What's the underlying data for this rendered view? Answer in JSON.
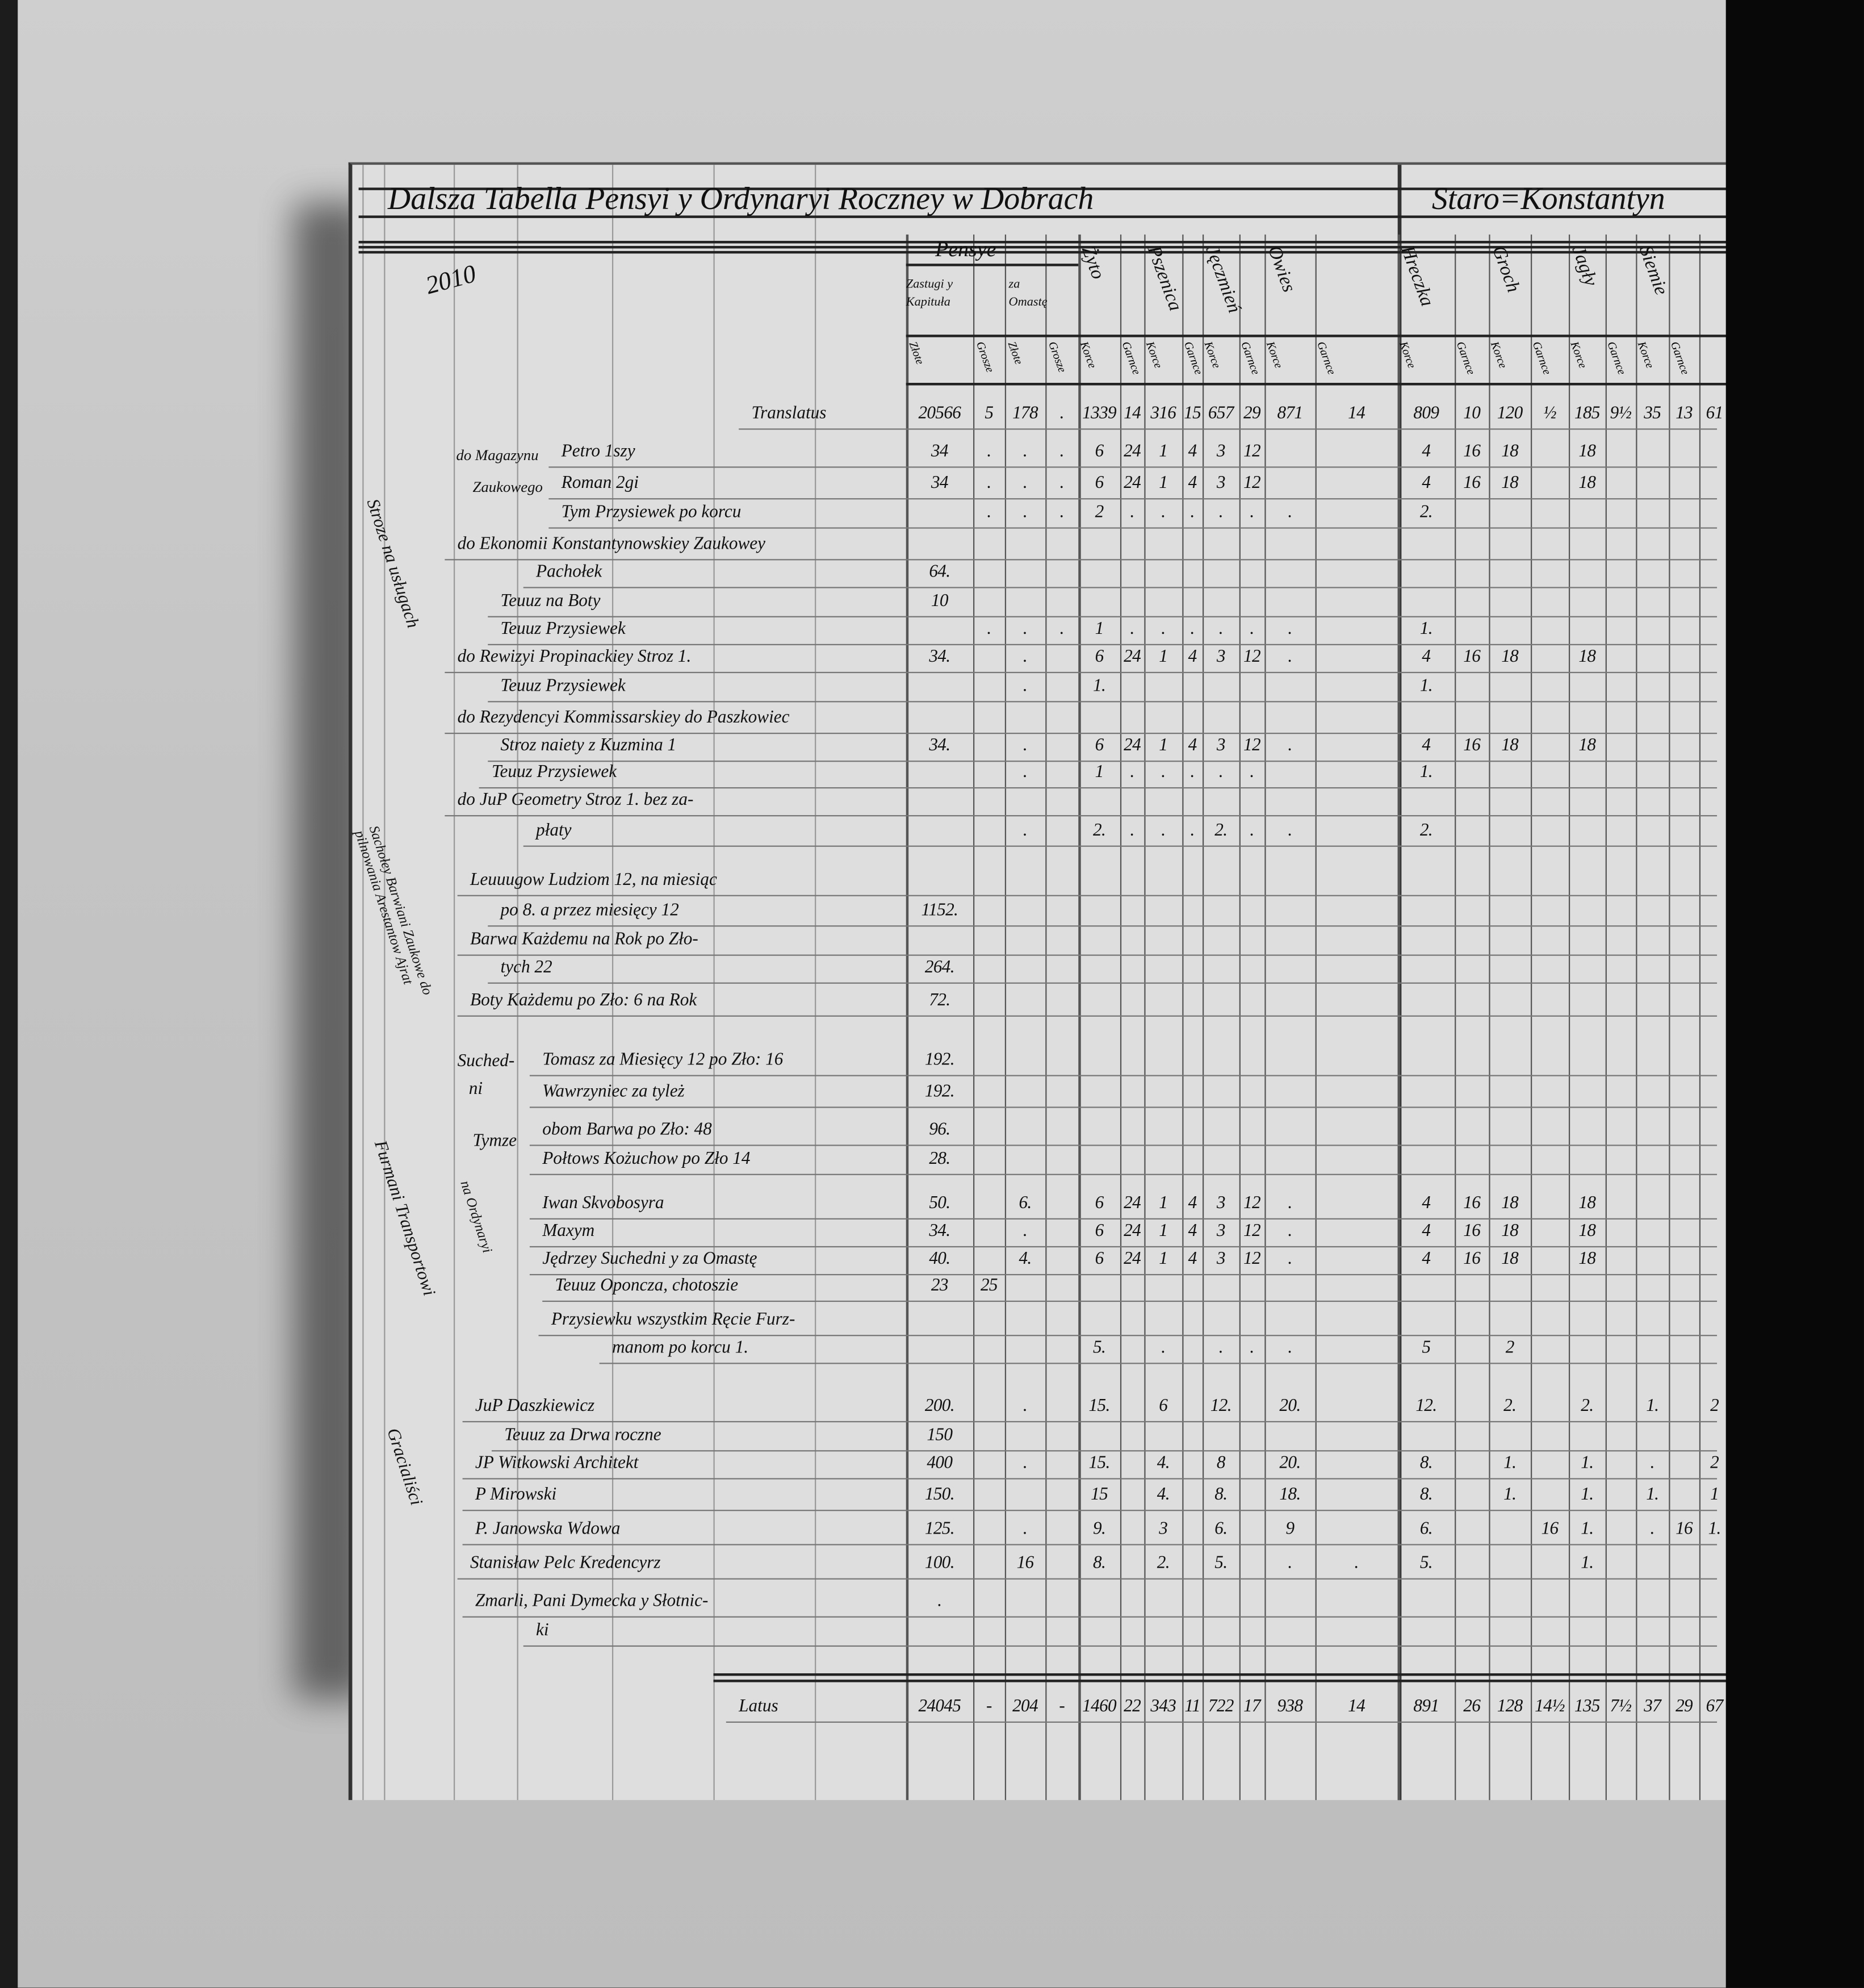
{
  "document": {
    "folio_number": "2010",
    "title_left": "Dalsza Tabella Pensyi y Ordynaryi Roczney w Dobrach",
    "title_right": "Staro=Konstantyn",
    "headers": {
      "pensye": "Pensye",
      "zastugi": "Zastugi y Kapituła",
      "omasta": "za Omastę",
      "money_units": [
        "Złote",
        "Grosze",
        "Złote",
        "Grosze"
      ],
      "crops": [
        "Żyto",
        "Pszenica",
        "Jęczmień",
        "Owies",
        "Hreczka",
        "Groch",
        "Jagły",
        "Siemie"
      ],
      "crop_units": [
        "Korce",
        "Garnce"
      ]
    },
    "side_labels": {
      "stroze": "Stroze na usługach",
      "sacholey": "Sachołey Barwiani Zaukowe do pilnowania Arestantow Ajrat",
      "furmani": "Furmani Transportowi",
      "na_ordynaryi": "na Ordynaryi",
      "gracialisci": "Gracialiści",
      "magazyn_1": "do Magazynu",
      "magazyn_2": "Zaukowego",
      "suchedni_1": "Suched-",
      "suchedni_2": "ni",
      "tymze": "Tymze"
    },
    "rows": [
      {
        "label": "Translatus",
        "values": [
          "20566",
          "5",
          "178",
          ".",
          "1339",
          "14",
          "316",
          "15",
          "657",
          "29",
          "871",
          "14",
          "809",
          "10",
          "120",
          "½",
          "185",
          "9½",
          "35",
          "13",
          "61"
        ]
      },
      {
        "label": "Petro 1szy",
        "values": [
          "34",
          ".",
          ".",
          ".",
          "6",
          "24",
          "1",
          "4",
          "3",
          "12",
          "",
          "",
          "4",
          "16",
          "18",
          "",
          "18",
          "",
          "",
          "",
          ""
        ]
      },
      {
        "label": "Roman 2gi",
        "values": [
          "34",
          ".",
          ".",
          ".",
          "6",
          "24",
          "1",
          "4",
          "3",
          "12",
          "",
          "",
          "4",
          "16",
          "18",
          "",
          "18",
          "",
          "",
          "",
          ""
        ]
      },
      {
        "label": "Tym Przysiewek po korcu",
        "values": [
          "",
          ".",
          ".",
          ".",
          "2",
          ".",
          ".",
          ".",
          ".",
          ".",
          ".",
          "",
          "2.",
          "",
          "",
          "",
          "",
          "",
          "",
          "",
          ""
        ]
      },
      {
        "label": "do Ekonomii Konstantynowskiey Zaukowey",
        "values": []
      },
      {
        "label": "Pachołek",
        "values": [
          "64."
        ]
      },
      {
        "label": "Teuuz na Boty",
        "values": [
          "10"
        ]
      },
      {
        "label": "Teuuz Przysiewek",
        "values": [
          "",
          ".",
          ".",
          ".",
          "1",
          ".",
          ".",
          ".",
          ".",
          ".",
          ".",
          "",
          "1.",
          "",
          "",
          "",
          "",
          "",
          "",
          "",
          ""
        ]
      },
      {
        "label": "do Rewizyi Propinackiey Stroz 1.",
        "values": [
          "34.",
          "",
          ".",
          "",
          "6",
          "24",
          "1",
          "4",
          "3",
          "12",
          ".",
          "",
          "4",
          "16",
          "18",
          "",
          "18",
          "",
          "",
          "",
          ""
        ]
      },
      {
        "label": "Teuuz Przysiewek",
        "values": [
          "",
          "",
          ".",
          "",
          "1.",
          "",
          "",
          "",
          "",
          "",
          "",
          "",
          "1.",
          "",
          "",
          "",
          "",
          "",
          "",
          "",
          ""
        ]
      },
      {
        "label": "do Rezydencyi Kommissarskiey do Paszkowiec",
        "values": []
      },
      {
        "label": "Stroz naiety z Kuzmina 1",
        "values": [
          "34.",
          "",
          ".",
          "",
          "6",
          "24",
          "1",
          "4",
          "3",
          "12",
          ".",
          "",
          "4",
          "16",
          "18",
          "",
          "18",
          "",
          "",
          "",
          ""
        ]
      },
      {
        "label": "Teuuz Przysiewek",
        "values": [
          "",
          "",
          ".",
          "",
          "1",
          ".",
          ".",
          ".",
          ".",
          ".",
          "",
          "",
          "1.",
          "",
          "",
          "",
          "",
          "",
          "",
          "",
          ""
        ]
      },
      {
        "label": "do JuP Geometry Stroz 1. bez za-",
        "values": []
      },
      {
        "label": "płaty",
        "values": [
          "",
          "",
          ".",
          "",
          "2.",
          ".",
          ".",
          ".",
          "2.",
          ".",
          ".",
          "",
          "2.",
          "",
          "",
          "",
          "",
          "",
          "",
          "",
          ""
        ]
      },
      {
        "label": "Leuuugow Ludziom 12, na miesiąc",
        "values": []
      },
      {
        "label": "po 8. a przez miesięcy 12",
        "values": [
          "1152."
        ]
      },
      {
        "label": "Barwa Każdemu na Rok po Zło-",
        "values": []
      },
      {
        "label": "tych 22",
        "values": [
          "264."
        ]
      },
      {
        "label": "Boty Każdemu po Zło: 6 na Rok",
        "values": [
          "72."
        ]
      },
      {
        "label": "Tomasz za Miesięcy 12 po Zło: 16",
        "values": [
          "192."
        ]
      },
      {
        "label": "Wawrzyniec za tyleż",
        "values": [
          "192."
        ]
      },
      {
        "label": "obom Barwa po Zło: 48",
        "values": [
          "96."
        ]
      },
      {
        "label": "Połtows Kożuchow po Zło 14",
        "values": [
          "28."
        ]
      },
      {
        "label": "Iwan Skvobosyra",
        "values": [
          "50.",
          "",
          "6.",
          "",
          "6",
          "24",
          "1",
          "4",
          "3",
          "12",
          ".",
          "",
          "4",
          "16",
          "18",
          "",
          "18",
          "",
          "",
          "",
          ""
        ]
      },
      {
        "label": "Maxym",
        "values": [
          "34.",
          "",
          ".",
          "",
          "6",
          "24",
          "1",
          "4",
          "3",
          "12",
          ".",
          "",
          "4",
          "16",
          "18",
          "",
          "18",
          "",
          "",
          "",
          ""
        ]
      },
      {
        "label": "Jędrzey Suchedni y za Omastę",
        "values": [
          "40.",
          "",
          "4.",
          "",
          "6",
          "24",
          "1",
          "4",
          "3",
          "12",
          ".",
          "",
          "4",
          "16",
          "18",
          "",
          "18",
          "",
          "",
          "",
          ""
        ]
      },
      {
        "label": "Teuuz Oponcza, chotoszie",
        "values": [
          "23",
          "25"
        ]
      },
      {
        "label": "Przysiewku wszystkim Ręcie Furz-",
        "values": []
      },
      {
        "label": "manom po korcu 1.",
        "values": [
          "",
          "",
          "",
          "",
          "5.",
          "",
          ".",
          "",
          ".",
          ".",
          ".",
          "",
          "5",
          "",
          "2",
          "",
          "",
          "",
          "",
          "",
          ""
        ]
      },
      {
        "label": "JuP Daszkiewicz",
        "values": [
          "200.",
          "",
          ".",
          "",
          "15.",
          "",
          "6",
          "",
          "12.",
          "",
          "20.",
          "",
          "12.",
          "",
          "2.",
          "",
          "2.",
          "",
          "1.",
          "",
          "2"
        ]
      },
      {
        "label": "Teuuz za Drwa roczne",
        "values": [
          "150"
        ]
      },
      {
        "label": "JP Witkowski Architekt",
        "values": [
          "400",
          "",
          ".",
          "",
          "15.",
          "",
          "4.",
          "",
          "8",
          "",
          "20.",
          "",
          "8.",
          "",
          "1.",
          "",
          "1.",
          "",
          ".",
          "",
          "2"
        ]
      },
      {
        "label": "P Mirowski",
        "values": [
          "150.",
          "",
          "",
          "",
          "15",
          "",
          "4.",
          "",
          "8.",
          "",
          "18.",
          "",
          "8.",
          "",
          "1.",
          "",
          "1.",
          "",
          "1.",
          "",
          "1"
        ]
      },
      {
        "label": "P. Janowska Wdowa",
        "values": [
          "125.",
          "",
          ".",
          "",
          "9.",
          "",
          "3",
          "",
          "6.",
          "",
          "9",
          "",
          "6.",
          "",
          "",
          "16",
          "1.",
          "",
          ".",
          "16",
          "1."
        ]
      },
      {
        "label": "Stanisław Pelc Kredencyrz",
        "values": [
          "100.",
          "",
          "16",
          "",
          "8.",
          "",
          "2.",
          "",
          "5.",
          "",
          ".",
          ".",
          "5.",
          "",
          "",
          "",
          "1.",
          "",
          "",
          "",
          ""
        ]
      },
      {
        "label": "Zmarli, Pani Dymecka y Słotnic-",
        "values": [
          "."
        ]
      },
      {
        "label": "ki",
        "values": []
      }
    ],
    "total": {
      "label": "Latus",
      "values": [
        "24045",
        "-",
        "204",
        "-",
        "1460",
        "22",
        "343",
        "11",
        "722",
        "17",
        "938",
        "14",
        "891",
        "26",
        "128",
        "14½",
        "135",
        "7½",
        "37",
        "29",
        "67"
      ]
    }
  }
}
